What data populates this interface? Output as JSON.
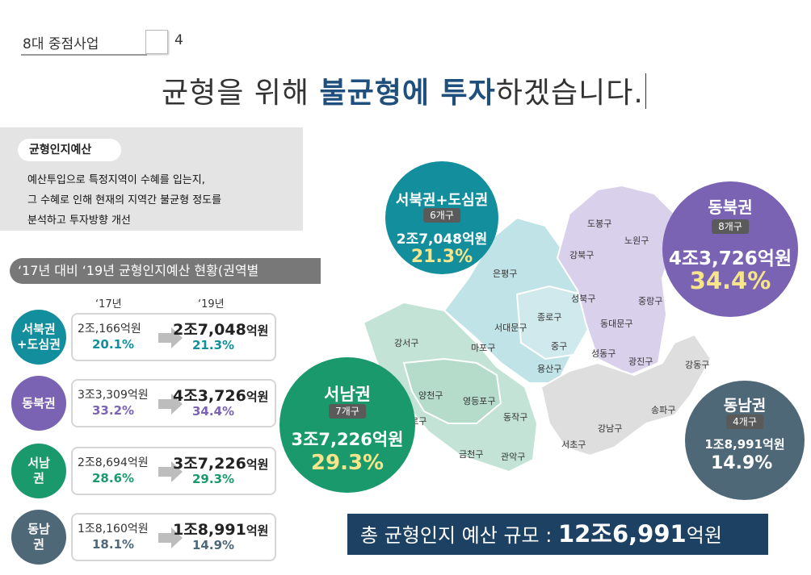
{
  "header": {
    "section_label": "8대 중점사업",
    "section_number": "4"
  },
  "headline": {
    "part1": "균형을 위해 ",
    "em1": "불균형에 투자",
    "part2": "하겠습니다."
  },
  "description": {
    "title": "균형인지예산",
    "lines": [
      "예산투입으로 특정지역이 수혜를 입는지,",
      "그 수혜로 인해 현재의 지역간 불균형 정도를",
      "분석하고 투자방향 개선"
    ]
  },
  "status_title": "‘17년 대비 ‘19년 균형인지예산 현황(권역별",
  "year_labels": {
    "y17": "‘17년",
    "y19": "‘19년"
  },
  "rows": [
    {
      "region": "서북권\n+도심권",
      "color": "#138e9c",
      "old_amount": "2조,166억원",
      "old_pct": "20.1%",
      "new_amount": "2조7,048",
      "new_unit": "억원",
      "new_pct": "21.3%",
      "pct_color": "#138e9c"
    },
    {
      "region": "동북권",
      "color": "#7a63b3",
      "old_amount": "3조3,309억원",
      "old_pct": "33.2%",
      "new_amount": "4조3,726",
      "new_unit": "억원",
      "new_pct": "34.4%",
      "pct_color": "#7a63b3"
    },
    {
      "region": "서남\n권",
      "color": "#1a9a6c",
      "old_amount": "2조8,694억원",
      "old_pct": "28.6%",
      "new_amount": "3조7,226",
      "new_unit": "억원",
      "new_pct": "29.3%",
      "pct_color": "#1a9a6c"
    },
    {
      "region": "동남\n권",
      "color": "#4f6878",
      "old_amount": "1조8,160억원",
      "old_pct": "18.1%",
      "new_amount": "1조8,991",
      "new_unit": "억원",
      "new_pct": "14.9%",
      "pct_color": "#4f6878"
    }
  ],
  "bubbles": {
    "northwest": {
      "name": "서북권+도심권",
      "count": "6개구",
      "amount": "2조7,048억원",
      "pct": "21.3%",
      "color": "#138e9c"
    },
    "northeast": {
      "name": "동북권",
      "count": "8개구",
      "amount": "4조3,726억원",
      "pct": "34.4%",
      "color": "#7a63b3"
    },
    "southwest": {
      "name": "서남권",
      "count": "7개구",
      "amount": "3조7,226억원",
      "pct": "29.3%",
      "color": "#1a9a6c"
    },
    "southeast": {
      "name": "동남권",
      "count": "4개구",
      "amount": "1조8,991억원",
      "pct": "14.9%",
      "color": "#4f6878"
    }
  },
  "districts": {
    "northwest_center": [
      "은평구",
      "서대문구",
      "마포구",
      "종로구",
      "중구",
      "용산구"
    ],
    "northeast": [
      "도봉구",
      "노원구",
      "강북구",
      "성북구",
      "중랑구",
      "동대문구",
      "성동구",
      "광진구"
    ],
    "southwest": [
      "강서구",
      "양천구",
      "구로구",
      "영등포구",
      "동작구",
      "금천구",
      "관악구"
    ],
    "southeast": [
      "강동구",
      "송파구",
      "강남구",
      "서초구"
    ]
  },
  "total": {
    "label": "총 균형인지 예산 규모 : ",
    "value": "12조6,991",
    "unit": "억원"
  }
}
